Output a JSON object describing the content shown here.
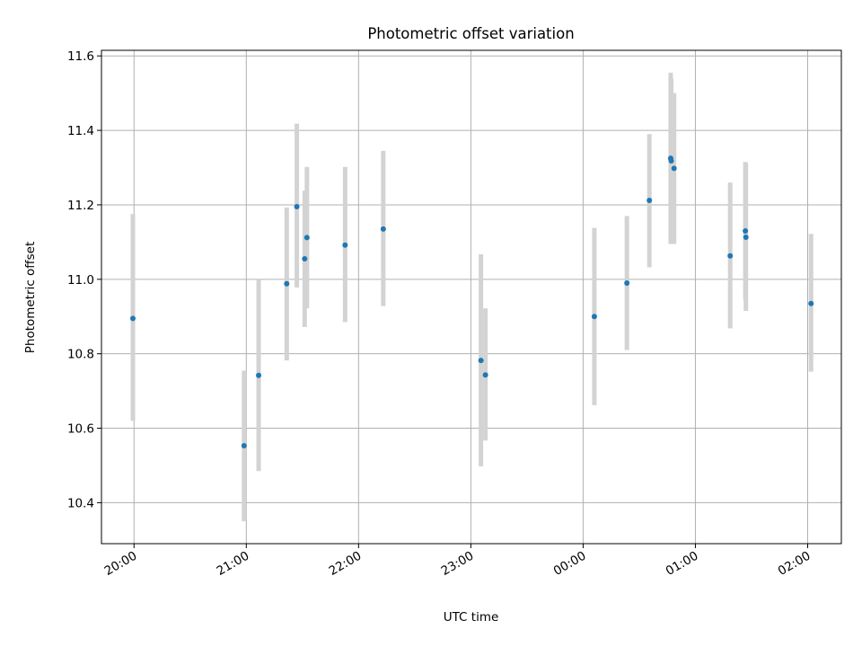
{
  "chart_data": {
    "type": "scatter",
    "title": "Photometric offset variation",
    "xlabel": "UTC time",
    "ylabel": "Photometric offset",
    "x_unit": "hours of UTC time, counted from 00:00 on the first night",
    "xlim": [
      -4.29,
      2.3
    ],
    "ylim": [
      10.29,
      11.615
    ],
    "grid": true,
    "legend": "none",
    "x_ticks": [
      {
        "value": -4,
        "label": "20:00"
      },
      {
        "value": -3,
        "label": "21:00"
      },
      {
        "value": -2,
        "label": "22:00"
      },
      {
        "value": -1,
        "label": "23:00"
      },
      {
        "value": 0,
        "label": "00:00"
      },
      {
        "value": 1,
        "label": "01:00"
      },
      {
        "value": 2,
        "label": "02:00"
      }
    ],
    "y_ticks": [
      {
        "value": 10.4,
        "label": "10.4"
      },
      {
        "value": 10.6,
        "label": "10.6"
      },
      {
        "value": 10.8,
        "label": "10.8"
      },
      {
        "value": 11.0,
        "label": "11.0"
      },
      {
        "value": 11.2,
        "label": "11.2"
      },
      {
        "value": 11.4,
        "label": "11.4"
      },
      {
        "value": 11.6,
        "label": "11.6"
      }
    ],
    "series": [
      {
        "marker_color": "#1f77b4",
        "errorbar_color": "#d3d3d3",
        "points": [
          {
            "x": -4.01,
            "y": 10.895,
            "low": 10.62,
            "high": 11.175
          },
          {
            "x": -3.02,
            "y": 10.553,
            "low": 10.35,
            "high": 10.755
          },
          {
            "x": -2.89,
            "y": 10.742,
            "low": 10.485,
            "high": 11.0
          },
          {
            "x": -2.64,
            "y": 10.988,
            "low": 10.782,
            "high": 11.193
          },
          {
            "x": -2.55,
            "y": 11.195,
            "low": 10.978,
            "high": 11.418
          },
          {
            "x": -2.48,
            "y": 11.055,
            "low": 10.872,
            "high": 11.238
          },
          {
            "x": -2.46,
            "y": 11.112,
            "low": 10.922,
            "high": 11.302
          },
          {
            "x": -2.12,
            "y": 11.092,
            "low": 10.885,
            "high": 11.302
          },
          {
            "x": -1.78,
            "y": 11.135,
            "low": 10.928,
            "high": 11.345
          },
          {
            "x": -0.91,
            "y": 10.782,
            "low": 10.498,
            "high": 11.067
          },
          {
            "x": -0.87,
            "y": 10.743,
            "low": 10.567,
            "high": 10.922
          },
          {
            "x": 0.1,
            "y": 10.9,
            "low": 10.662,
            "high": 11.138
          },
          {
            "x": 0.39,
            "y": 10.99,
            "low": 10.81,
            "high": 11.17
          },
          {
            "x": 0.59,
            "y": 11.212,
            "low": 11.032,
            "high": 11.39
          },
          {
            "x": 0.78,
            "y": 11.325,
            "low": 11.095,
            "high": 11.555
          },
          {
            "x": 0.785,
            "y": 11.318,
            "low": 11.1,
            "high": 11.54
          },
          {
            "x": 0.81,
            "y": 11.298,
            "low": 11.095,
            "high": 11.5
          },
          {
            "x": 1.31,
            "y": 11.063,
            "low": 10.868,
            "high": 11.26
          },
          {
            "x": 1.445,
            "y": 11.13,
            "low": 10.945,
            "high": 11.315
          },
          {
            "x": 1.45,
            "y": 11.113,
            "low": 10.915,
            "high": 11.312
          },
          {
            "x": 2.03,
            "y": 10.935,
            "low": 10.752,
            "high": 11.122
          }
        ]
      }
    ]
  }
}
